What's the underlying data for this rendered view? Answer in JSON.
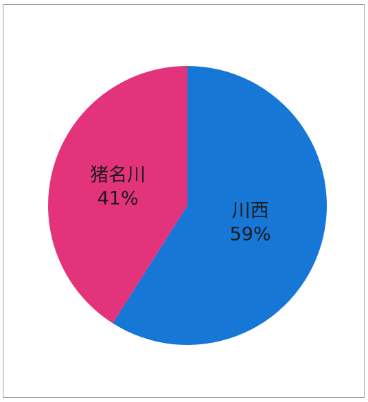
{
  "chart_data": {
    "type": "pie",
    "slices": [
      {
        "name": "川西",
        "value": 59,
        "label": "59%",
        "color": "#1677d6"
      },
      {
        "name": "猪名川",
        "value": 41,
        "label": "41%",
        "color": "#e3337a"
      }
    ],
    "title": "",
    "legend": "none",
    "start_angle_deg": 0,
    "direction": "clockwise"
  }
}
